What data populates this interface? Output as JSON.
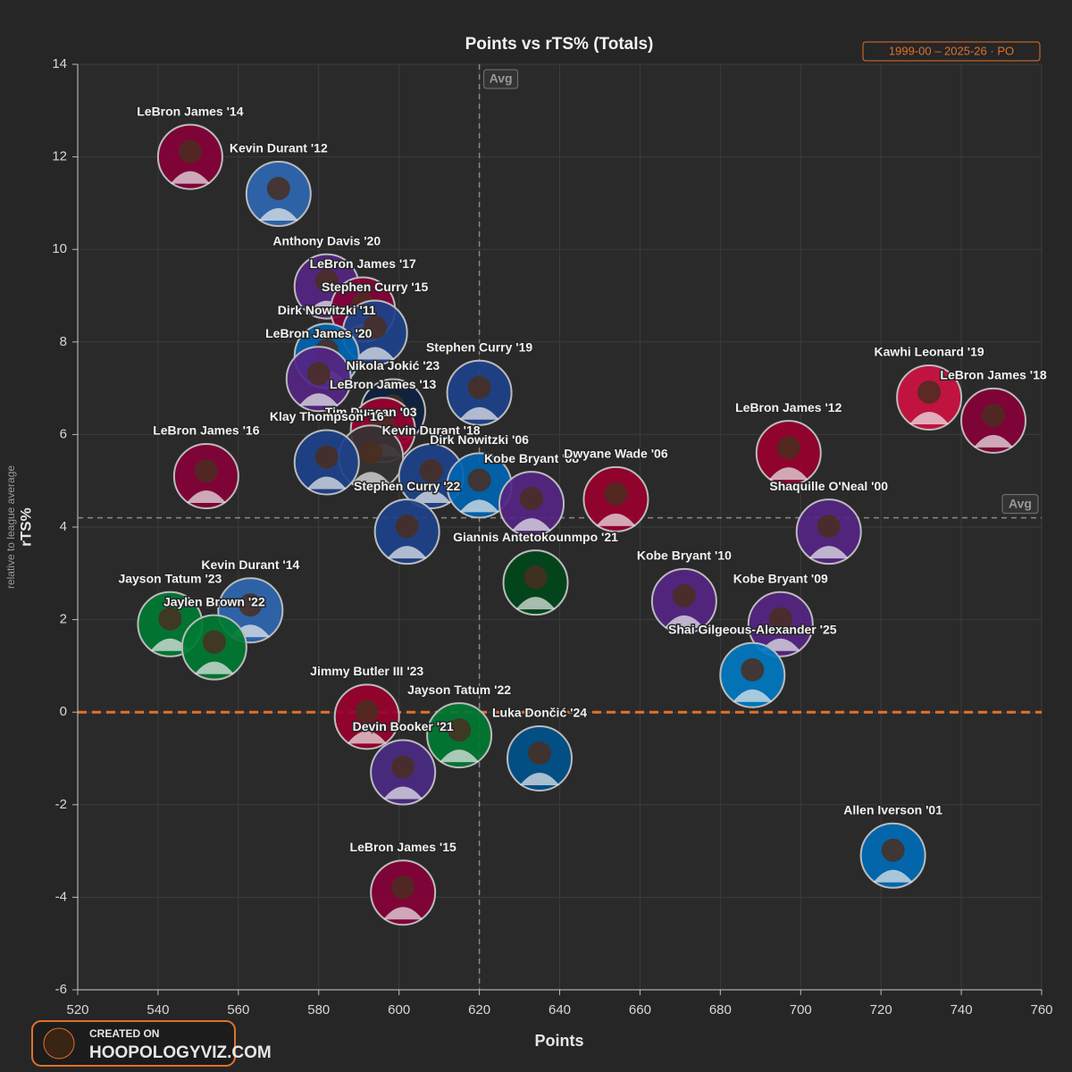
{
  "chart_data": {
    "type": "scatter",
    "title": "Points vs rTS% (Totals)",
    "badge": "1999-00 – 2025-26 · PO",
    "x_label": "Points",
    "y_label": "rTS%",
    "y_sublabel": "relative to league average",
    "xlim": [
      520,
      760
    ],
    "xticks": [
      520,
      540,
      560,
      580,
      600,
      620,
      640,
      660,
      680,
      700,
      720,
      740,
      760
    ],
    "ylim": [
      -6,
      14
    ],
    "yticks": [
      -6,
      -4,
      -2,
      0,
      2,
      4,
      6,
      8,
      10,
      12,
      14
    ],
    "grid": true,
    "avg_label": "Avg",
    "avg_x": 620,
    "avg_y": 4.2,
    "zero_line_color": "#e0712b",
    "points": [
      {
        "label": "LeBron James '14",
        "x": 548,
        "y": 12.0,
        "color": "#860038"
      },
      {
        "label": "Kevin Durant '12",
        "x": 570,
        "y": 11.2,
        "color": "#2e67b2"
      },
      {
        "label": "Anthony Davis '20",
        "x": 582,
        "y": 9.2,
        "color": "#552583"
      },
      {
        "label": "LeBron James '17",
        "x": 591,
        "y": 8.7,
        "color": "#860038"
      },
      {
        "label": "Stephen Curry '15",
        "x": 594,
        "y": 8.2,
        "color": "#1d428a"
      },
      {
        "label": "Dirk Nowitzki '11",
        "x": 582,
        "y": 7.7,
        "color": "#0064b1"
      },
      {
        "label": "LeBron James '20",
        "x": 580,
        "y": 7.2,
        "color": "#552583"
      },
      {
        "label": "Stephen Curry '19",
        "x": 620,
        "y": 6.9,
        "color": "#1d428a"
      },
      {
        "label": "Nikola Jokić '23",
        "x": 598.5,
        "y": 6.5,
        "color": "#0e2240"
      },
      {
        "label": "LeBron James '13",
        "x": 596,
        "y": 6.1,
        "color": "#98002e"
      },
      {
        "label": "Tim Duncan '03",
        "x": 593,
        "y": 5.5,
        "color": "#333333"
      },
      {
        "label": "Klay Thompson '16",
        "x": 582,
        "y": 5.4,
        "color": "#1d428a"
      },
      {
        "label": "Kevin Durant '18",
        "x": 608,
        "y": 5.1,
        "color": "#1d428a"
      },
      {
        "label": "Dirk Nowitzki '06",
        "x": 620,
        "y": 4.9,
        "color": "#0064b1"
      },
      {
        "label": "Kobe Bryant '08",
        "x": 633,
        "y": 4.5,
        "color": "#552583"
      },
      {
        "label": "Stephen Curry '22",
        "x": 602,
        "y": 3.9,
        "color": "#1d428a"
      },
      {
        "label": "LeBron James '16",
        "x": 552,
        "y": 5.1,
        "color": "#860038"
      },
      {
        "label": "Dwyane Wade '06",
        "x": 654,
        "y": 4.6,
        "color": "#98002e"
      },
      {
        "label": "LeBron James '12",
        "x": 697,
        "y": 5.6,
        "color": "#98002e"
      },
      {
        "label": "Kawhi Leonard '19",
        "x": 732,
        "y": 6.8,
        "color": "#ce1141"
      },
      {
        "label": "LeBron James '18",
        "x": 748,
        "y": 6.3,
        "color": "#860038"
      },
      {
        "label": "Shaquille O'Neal '00",
        "x": 707,
        "y": 3.9,
        "color": "#552583"
      },
      {
        "label": "Giannis Antetokounmpo '21",
        "x": 634,
        "y": 2.8,
        "color": "#00471b"
      },
      {
        "label": "Kobe Bryant '10",
        "x": 671,
        "y": 2.4,
        "color": "#552583"
      },
      {
        "label": "Kobe Bryant '09",
        "x": 695,
        "y": 1.9,
        "color": "#552583"
      },
      {
        "label": "Shai Gilgeous-Alexander '25",
        "x": 688,
        "y": 0.8,
        "color": "#007ac1"
      },
      {
        "label": "Kevin Durant '14",
        "x": 563,
        "y": 2.2,
        "color": "#2e67b2"
      },
      {
        "label": "Jayson Tatum '23",
        "x": 543,
        "y": 1.9,
        "color": "#007a33"
      },
      {
        "label": "Jaylen Brown '22",
        "x": 554,
        "y": 1.4,
        "color": "#007a33"
      },
      {
        "label": "Jimmy Butler III '23",
        "x": 592,
        "y": -0.1,
        "color": "#98002e"
      },
      {
        "label": "Jayson Tatum '22",
        "x": 615,
        "y": -0.5,
        "color": "#007a33"
      },
      {
        "label": "Luka Dončić '24",
        "x": 635,
        "y": -1.0,
        "color": "#00538c"
      },
      {
        "label": "Devin Booker '21",
        "x": 601,
        "y": -1.3,
        "color": "#4b2a84"
      },
      {
        "label": "Allen Iverson '01",
        "x": 723,
        "y": -3.1,
        "color": "#006bb6"
      },
      {
        "label": "LeBron James '15",
        "x": 601,
        "y": -3.9,
        "color": "#860038"
      }
    ]
  },
  "footer": {
    "line1": "CREATED ON",
    "line2": "HOOPOLOGYVIZ.COM"
  }
}
